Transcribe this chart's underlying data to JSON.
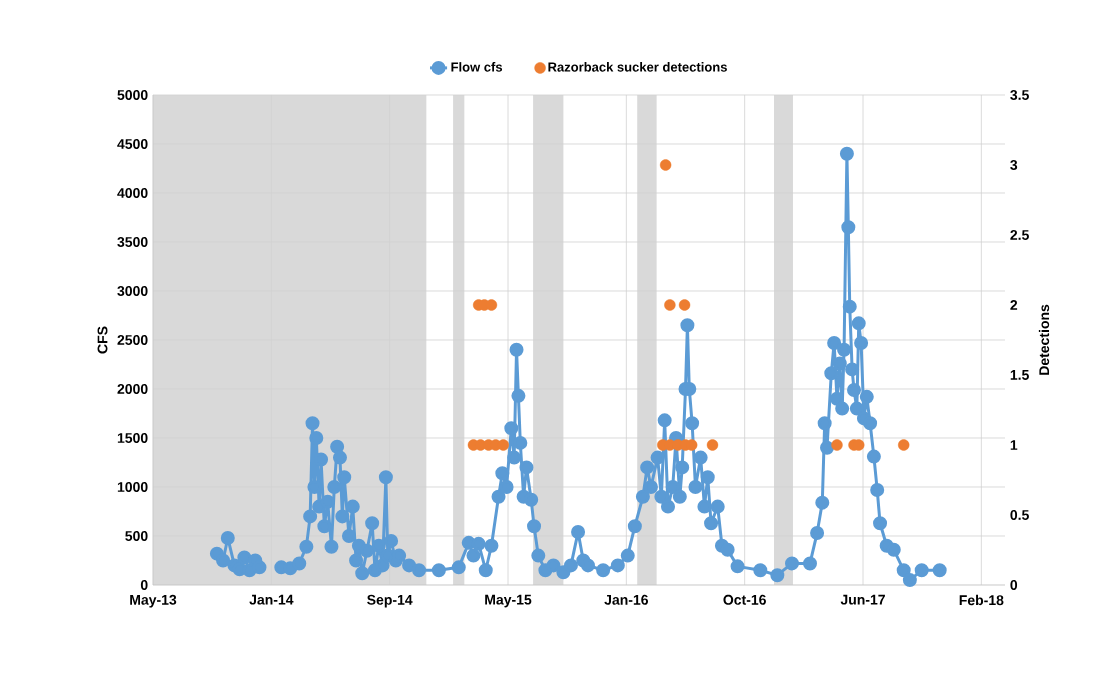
{
  "chart_data": {
    "type": "line",
    "ylabel": "CFS",
    "y2label": "Detections",
    "xlim": [
      "2013-05-06",
      "2018-04-10"
    ],
    "xticks": [
      {
        "value": "2013-05-06",
        "label": "May-13"
      },
      {
        "value": "2014-01-11",
        "label": "Jan-14"
      },
      {
        "value": "2014-09-18",
        "label": "Sep-14"
      },
      {
        "value": "2015-05-26",
        "label": "May-15"
      },
      {
        "value": "2016-01-31",
        "label": "Jan-16"
      },
      {
        "value": "2016-10-07",
        "label": "Oct-16"
      },
      {
        "value": "2017-06-14",
        "label": "Jun-17"
      },
      {
        "value": "2018-02-19",
        "label": "Feb-18"
      }
    ],
    "ylim": [
      0,
      5000
    ],
    "yticks": [
      0,
      500,
      1000,
      1500,
      2000,
      2500,
      3000,
      3500,
      4000,
      4500,
      5000
    ],
    "y2lim": [
      0,
      3.5
    ],
    "y2ticks": [
      0,
      0.5,
      1,
      1.5,
      2,
      2.5,
      3,
      3.5
    ],
    "grid": true,
    "legend": "top",
    "bands": [
      {
        "axis": "x",
        "from": "2013-05-06",
        "to": "2014-12-05",
        "color": "#d9d9d9"
      },
      {
        "axis": "x",
        "from": "2015-01-30",
        "to": "2015-02-23",
        "color": "#d9d9d9"
      },
      {
        "axis": "x",
        "from": "2015-07-18",
        "to": "2015-09-20",
        "color": "#d9d9d9"
      },
      {
        "axis": "x",
        "from": "2016-02-23",
        "to": "2016-04-04",
        "color": "#d9d9d9"
      },
      {
        "axis": "x",
        "from": "2016-12-08",
        "to": "2017-01-17",
        "color": "#d9d9d9"
      }
    ],
    "series": [
      {
        "name": "Flow cfs",
        "color": "#5b9bd5",
        "marker": "circle",
        "line_style": "solid",
        "x": [
          "2013-09-18",
          "2013-10-01",
          "2013-10-11",
          "2013-10-25",
          "2013-11-05",
          "2013-11-15",
          "2013-11-26",
          "2013-12-08",
          "2013-12-17",
          "2014-01-10",
          "2014-02-01",
          "2014-02-20",
          "2014-03-11",
          "2014-03-26",
          "2014-04-03",
          "2014-04-08",
          "2014-04-12",
          "2014-04-16",
          "2014-04-22",
          "2014-04-26",
          "2014-05-03",
          "2014-05-10",
          "2014-05-18",
          "2014-05-24",
          "2014-05-30",
          "2014-06-05",
          "2014-06-10",
          "2014-06-14",
          "2014-06-24",
          "2014-07-02",
          "2014-07-09",
          "2014-07-15",
          "2014-07-22",
          "2014-08-01",
          "2014-08-12",
          "2014-08-18",
          "2014-08-26",
          "2014-09-03",
          "2014-09-10",
          "2014-09-14",
          "2014-09-21",
          "2014-10-01",
          "2014-10-08",
          "2014-10-29",
          "2014-11-19",
          "2014-12-31",
          "2015-02-11",
          "2015-03-04",
          "2015-03-14",
          "2015-03-25",
          "2015-04-09",
          "2015-04-21",
          "2015-05-06",
          "2015-05-14",
          "2015-05-23",
          "2015-06-02",
          "2015-06-08",
          "2015-06-13",
          "2015-06-17",
          "2015-06-21",
          "2015-06-28",
          "2015-07-04",
          "2015-07-14",
          "2015-07-20",
          "2015-07-29",
          "2015-08-13",
          "2015-08-30",
          "2015-09-20",
          "2015-10-06",
          "2015-10-21",
          "2015-11-01",
          "2015-11-11",
          "2015-12-13",
          "2016-01-13",
          "2016-02-03",
          "2016-02-18",
          "2016-03-06",
          "2016-03-15",
          "2016-03-23",
          "2016-04-06",
          "2016-04-14",
          "2016-04-21",
          "2016-04-28",
          "2016-05-08",
          "2016-05-15",
          "2016-05-23",
          "2016-05-28",
          "2016-06-04",
          "2016-06-08",
          "2016-06-12",
          "2016-06-18",
          "2016-06-25",
          "2016-07-06",
          "2016-07-14",
          "2016-07-21",
          "2016-07-28",
          "2016-08-11",
          "2016-08-20",
          "2016-09-01",
          "2016-09-22",
          "2016-11-09",
          "2016-12-15",
          "2017-01-15",
          "2017-02-22",
          "2017-03-09",
          "2017-03-20",
          "2017-03-25",
          "2017-03-30",
          "2017-04-08",
          "2017-04-14",
          "2017-04-20",
          "2017-04-26",
          "2017-05-01",
          "2017-05-05",
          "2017-05-11",
          "2017-05-14",
          "2017-05-17",
          "2017-05-22",
          "2017-05-26",
          "2017-06-01",
          "2017-06-05",
          "2017-06-10",
          "2017-06-16",
          "2017-06-22",
          "2017-06-29",
          "2017-07-07",
          "2017-07-14",
          "2017-07-20",
          "2017-08-03",
          "2017-08-18",
          "2017-09-08",
          "2017-09-21",
          "2017-10-16",
          "2017-11-23"
        ],
        "values": [
          320,
          250,
          480,
          200,
          160,
          280,
          150,
          250,
          180,
          null,
          180,
          170,
          220,
          390,
          700,
          1650,
          1000,
          1500,
          800,
          1280,
          600,
          850,
          390,
          1000,
          1410,
          1300,
          700,
          1100,
          500,
          800,
          250,
          400,
          120,
          350,
          630,
          150,
          400,
          200,
          1100,
          300,
          450,
          250,
          300,
          200,
          150,
          150,
          180,
          430,
          300,
          420,
          150,
          400,
          900,
          1140,
          1000,
          1600,
          1300,
          2400,
          1930,
          1450,
          900,
          1200,
          870,
          600,
          300,
          150,
          200,
          130,
          200,
          540,
          250,
          200,
          150,
          200,
          300,
          600,
          900,
          1200,
          1000,
          1300,
          900,
          1680,
          800,
          1000,
          1500,
          900,
          1200,
          2000,
          2650,
          2000,
          1650,
          1000,
          1300,
          800,
          1100,
          630,
          800,
          400,
          360,
          190,
          150,
          100,
          220,
          220,
          530,
          840,
          1650,
          1400,
          2160,
          2470,
          1900,
          2260,
          1800,
          2400,
          4400,
          3650,
          2840,
          2200,
          1990,
          1800,
          2670,
          2470,
          1700,
          1920,
          1650,
          1310,
          970,
          630,
          400,
          360,
          150,
          50,
          150,
          150
        ]
      },
      {
        "name": "Razorback sucker detections",
        "type": "scatter",
        "axis": "y2",
        "color": "#ed7d31",
        "marker": "circle",
        "x": [
          "2015-03-14",
          "2015-03-29",
          "2015-03-25",
          "2015-04-06",
          "2015-04-15",
          "2015-04-21",
          "2015-04-30",
          "2015-05-16",
          "2016-04-17",
          "2016-04-23",
          "2016-05-02",
          "2016-05-02",
          "2016-05-19",
          "2016-06-02",
          "2016-06-04",
          "2016-06-17",
          "2016-07-31",
          "2017-04-20",
          "2017-05-26",
          "2017-06-05",
          "2017-09-08"
        ],
        "values": [
          1,
          1,
          2,
          2,
          1,
          2,
          1,
          1,
          1,
          3,
          1,
          2,
          1,
          2,
          1,
          1,
          1,
          1,
          1,
          1,
          1
        ]
      }
    ]
  }
}
